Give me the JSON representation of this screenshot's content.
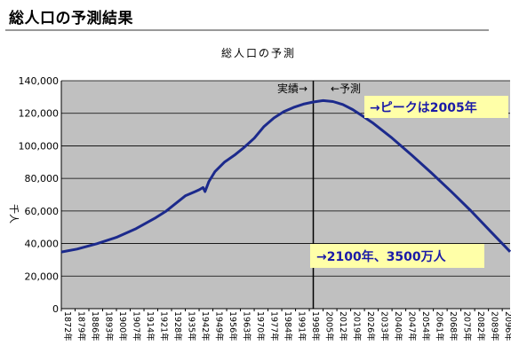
{
  "page": {
    "title": "総人口の予測結果"
  },
  "chart_data": {
    "type": "line",
    "title": "総人口の予測",
    "ylabel": "千人",
    "xlabel": "",
    "ylim": [
      0,
      140000
    ],
    "yticks": [
      "0",
      "20,000",
      "40,000",
      "60,000",
      "80,000",
      "100,000",
      "120,000",
      "140,000"
    ],
    "xticks": [
      "1872年",
      "1879年",
      "1886年",
      "1893年",
      "1900年",
      "1907年",
      "1914年",
      "1921年",
      "1928年",
      "1935年",
      "1942年",
      "1949年",
      "1956年",
      "1963年",
      "1970年",
      "1977年",
      "1984年",
      "1991年",
      "1998年",
      "2005年",
      "2012年",
      "2019年",
      "2026年",
      "2033年",
      "2040年",
      "2047年",
      "2054年",
      "2061年",
      "2068年",
      "2075年",
      "2082年",
      "2089年",
      "2096年"
    ],
    "xlim": [
      1872,
      2100
    ],
    "grid": true,
    "legend": "none",
    "background_color": "#c0c0c0",
    "line_color": "#1c2a8c",
    "divider_year": 2000,
    "annotations": {
      "actual": "実績→",
      "forecast": "←予測",
      "peak_note": "→ピークは2005年",
      "end_note": "→2100年、3500万人"
    },
    "series": [
      {
        "x": [
          1872,
          1880,
          1890,
          1900,
          1910,
          1920,
          1925,
          1930,
          1935,
          1940,
          1942,
          1944,
          1945,
          1947,
          1950,
          1955,
          1960,
          1965,
          1970,
          1975,
          1980,
          1985,
          1990,
          1995,
          2000,
          2005,
          2010,
          2015,
          2020,
          2025,
          2030,
          2040,
          2050,
          2060,
          2070,
          2080,
          2090,
          2100
        ],
        "y": [
          34800,
          36600,
          39900,
          43800,
          49200,
          55900,
          59700,
          64500,
          69300,
          71900,
          73000,
          74400,
          71900,
          78100,
          84100,
          90100,
          94300,
          99200,
          104700,
          111900,
          117100,
          121000,
          123600,
          125600,
          126900,
          127800,
          127200,
          125400,
          122300,
          118400,
          114300,
          104800,
          94300,
          83400,
          72000,
          60200,
          47500,
          35000
        ]
      }
    ]
  }
}
